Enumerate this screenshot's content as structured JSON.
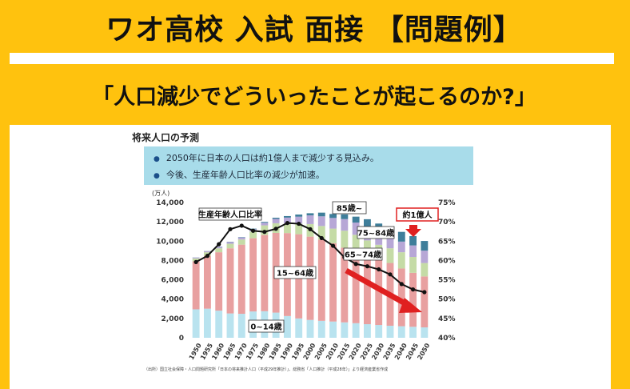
{
  "header": {
    "title": "ワオ高校 入試 面接 【問題例】"
  },
  "question": {
    "text": "「人口減少でどういったことが起こるのか?」"
  },
  "chart": {
    "title": "将来人口の予測",
    "bullets": [
      "2050年に日本の人口は約1億人まで減少する見込み。",
      "今後、生産年齢人口比率の減少が加速。"
    ],
    "source": "（出所）国立社会保障・人口問題研究所「日本の将来推計人口（平成29年推計）」、総務省「人口推計（平成28年）」より経済産業省作成"
  },
  "chart_data": {
    "type": "bar",
    "stacked": true,
    "ylabel_left": "(万人)",
    "ylim": [
      0,
      14000
    ],
    "y2lim": [
      40,
      75
    ],
    "y_ticks": [
      "0",
      "2,000",
      "4,000",
      "6,000",
      "8,000",
      "10,000",
      "12,000",
      "14,000"
    ],
    "y2_ticks": [
      "40%",
      "45%",
      "50%",
      "55%",
      "60%",
      "65%",
      "70%",
      "75%"
    ],
    "categories": [
      "1950",
      "1955",
      "1960",
      "1965",
      "1970",
      "1975",
      "1980",
      "1985",
      "1990",
      "1995",
      "2000",
      "2005",
      "2010",
      "2015",
      "2020",
      "2025",
      "2030",
      "2035",
      "2040",
      "2045",
      "2050"
    ],
    "series": [
      {
        "name": "0~14歳",
        "color": "#b9e3ef",
        "values": [
          2943,
          3012,
          2807,
          2517,
          2482,
          2722,
          2751,
          2603,
          2249,
          2001,
          1847,
          1752,
          1680,
          1595,
          1507,
          1407,
          1321,
          1246,
          1194,
          1138,
          1077
        ]
      },
      {
        "name": "15~64歳",
        "color": "#e8a0a0",
        "values": [
          4966,
          5473,
          6047,
          6744,
          7157,
          7581,
          7883,
          8251,
          8590,
          8716,
          8622,
          8409,
          8103,
          7728,
          7406,
          7170,
          6875,
          6494,
          5978,
          5584,
          5275
        ]
      },
      {
        "name": "65~74歳",
        "color": "#c5dba6",
        "values": [
          308,
          367,
          410,
          470,
          534,
          693,
          1000,
          1000,
          1000,
          1100,
          1300,
          1407,
          1517,
          1760,
          1747,
          1497,
          1428,
          1522,
          1681,
          1643,
          1383
        ]
      },
      {
        "name": "75~84歳",
        "color": "#b7a7d6",
        "values": [
          90,
          111,
          147,
          169,
          206,
          240,
          267,
          450,
          597,
          717,
          901,
          1000,
          1100,
          1200,
          1264,
          1444,
          1330,
          1176,
          1100,
          1192,
          1283
        ]
      },
      {
        "name": "85歳~",
        "color": "#3f7e9a",
        "values": [
          10,
          14,
          20,
          30,
          41,
          60,
          90,
          120,
          160,
          220,
          220,
          383,
          411,
          492,
          613,
          750,
          868,
          1016,
          1008,
          967,
          1000
        ]
      }
    ],
    "line": {
      "name": "生産年齢人口比率",
      "values": [
        59.6,
        61.2,
        64.2,
        68.1,
        69.0,
        67.7,
        67.4,
        68.2,
        69.7,
        69.5,
        68.1,
        65.8,
        63.8,
        60.8,
        59.1,
        58.5,
        57.7,
        56.4,
        53.9,
        52.5,
        51.8
      ]
    },
    "annotations": [
      "生産年齢人口比率",
      "85歳~",
      "75~84歳",
      "65~74歳",
      "15~64歳",
      "0~14歳",
      "約1億人"
    ],
    "highlight": "#e02020"
  }
}
